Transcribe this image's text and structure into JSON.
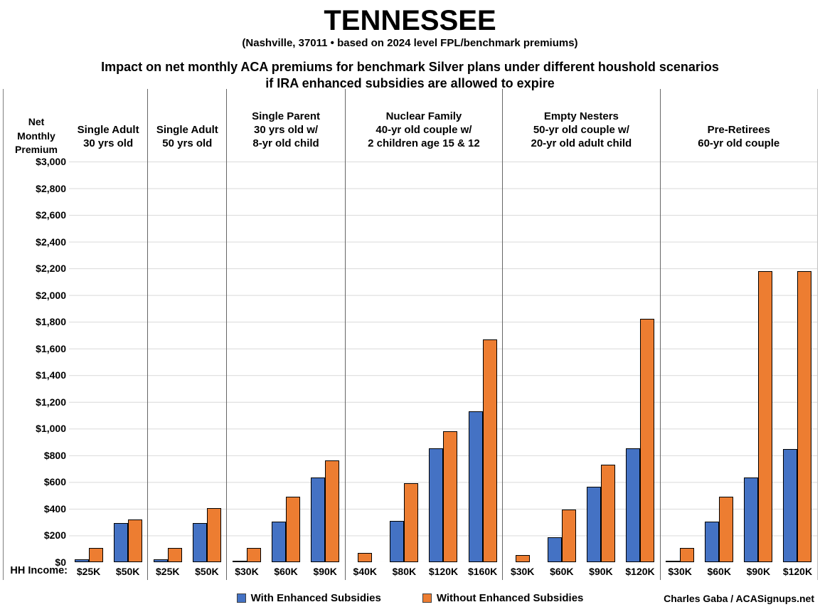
{
  "title": "TENNESSEE",
  "subtitle": "(Nashville, 37011 • based on 2024 level FPL/benchmark premiums)",
  "heading": {
    "line1": "Impact on net monthly ACA premiums for benchmark Silver plans under different houshold scenarios",
    "line2": "if IRA enhanced subsidies are allowed to expire"
  },
  "y_axis": {
    "title_lines": [
      "Net",
      "Monthly",
      "Premium"
    ],
    "hh_income_label": "HH Income:"
  },
  "legend": {
    "items": [
      {
        "label": "With Enhanced Subsidies",
        "color": "#4472C4"
      },
      {
        "label": "Without Enhanced Subsidies",
        "color": "#ED7D31"
      }
    ]
  },
  "credit": "Charles Gaba / ACASignups.net",
  "colors": {
    "with_subsidies": "#4472C4",
    "without_subsidies": "#ED7D31",
    "bar_border": "#000000",
    "gridline": "#D9D9D9",
    "divider": "#666666"
  },
  "chart_data": {
    "type": "bar",
    "title": "Impact on net monthly ACA premiums for benchmark Silver plans under different houshold scenarios if IRA enhanced subsidies are allowed to expire",
    "ylabel": "Net Monthly Premium",
    "xlabel": "HH Income",
    "ylim": [
      0,
      3000
    ],
    "ytick_step": 200,
    "grid": true,
    "legend_position": "bottom",
    "series_names": [
      "With Enhanced Subsidies",
      "Without Enhanced Subsidies"
    ],
    "groups": [
      {
        "label_lines": [
          "Single Adult",
          "30 yrs old"
        ],
        "categories": [
          "$25K",
          "$50K"
        ],
        "with_enhanced": [
          20,
          295
        ],
        "without_enhanced": [
          105,
          320
        ]
      },
      {
        "label_lines": [
          "Single Adult",
          "50 yrs old"
        ],
        "categories": [
          "$25K",
          "$50K"
        ],
        "with_enhanced": [
          20,
          295
        ],
        "without_enhanced": [
          105,
          405
        ]
      },
      {
        "label_lines": [
          "Single Parent",
          "30 yrs old w/",
          "8-yr old child"
        ],
        "categories": [
          "$30K",
          "$60K",
          "$90K"
        ],
        "with_enhanced": [
          5,
          305,
          635
        ],
        "without_enhanced": [
          105,
          490,
          760
        ]
      },
      {
        "label_lines": [
          "Nuclear Family",
          "40-yr old couple w/",
          "2 children age 15 & 12"
        ],
        "categories": [
          "$40K",
          "$80K",
          "$120K",
          "$160K"
        ],
        "with_enhanced": [
          0,
          310,
          850,
          1130
        ],
        "without_enhanced": [
          70,
          590,
          980,
          1670
        ]
      },
      {
        "label_lines": [
          "Empty Nesters",
          "50-yr old couple w/",
          "20-yr old adult child"
        ],
        "categories": [
          "$30K",
          "$60K",
          "$90K",
          "$120K"
        ],
        "with_enhanced": [
          0,
          185,
          565,
          850
        ],
        "without_enhanced": [
          55,
          395,
          730,
          1820
        ]
      },
      {
        "label_lines": [
          "Pre-Retirees",
          "60-yr old couple"
        ],
        "categories": [
          "$30K",
          "$60K",
          "$90K",
          "$120K"
        ],
        "with_enhanced": [
          5,
          305,
          635,
          845
        ],
        "without_enhanced": [
          105,
          490,
          2180,
          2180
        ]
      }
    ]
  }
}
